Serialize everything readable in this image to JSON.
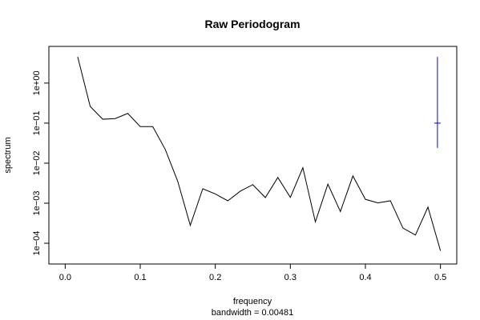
{
  "chart_data": {
    "type": "line",
    "title": "Raw Periodogram",
    "xlabel": "frequency",
    "subtitle": "bandwidth = 0.00481",
    "ylabel": "spectrum",
    "y_scale": "log",
    "xlim": [
      0.0,
      0.5
    ],
    "ylim": [
      5e-05,
      5.0
    ],
    "x_ticks": [
      0.0,
      0.1,
      0.2,
      0.3,
      0.4,
      0.5
    ],
    "x_tick_labels": [
      "0.0",
      "0.1",
      "0.2",
      "0.3",
      "0.4",
      "0.5"
    ],
    "y_ticks": [
      0.0001,
      0.001,
      0.01,
      0.1,
      1
    ],
    "y_tick_labels": [
      "1e−04",
      "1e−03",
      "1e−02",
      "1e−01",
      "1e+00"
    ],
    "series": [
      {
        "color": "#000000",
        "x": [
          0.01667,
          0.03333,
          0.05,
          0.06667,
          0.08333,
          0.1,
          0.11667,
          0.13333,
          0.15,
          0.16667,
          0.18333,
          0.2,
          0.21667,
          0.23333,
          0.25,
          0.26667,
          0.28333,
          0.3,
          0.31667,
          0.33333,
          0.35,
          0.36667,
          0.38333,
          0.4,
          0.41667,
          0.43333,
          0.45,
          0.46667,
          0.48333,
          0.5
        ],
        "y": [
          4.5,
          0.26,
          0.125,
          0.13,
          0.175,
          0.082,
          0.082,
          0.022,
          0.0035,
          0.00028,
          0.0023,
          0.0017,
          0.00115,
          0.002,
          0.0029,
          0.00138,
          0.0044,
          0.0014,
          0.0077,
          0.00034,
          0.003,
          0.00062,
          0.0048,
          0.00125,
          0.00102,
          0.00115,
          0.00024,
          0.00016,
          0.0008,
          6.5e-05
        ]
      }
    ],
    "ci_bar": {
      "color": "#0000ff",
      "x": 0.496,
      "lower": 0.024,
      "center": 0.1,
      "upper": 4.5
    }
  }
}
